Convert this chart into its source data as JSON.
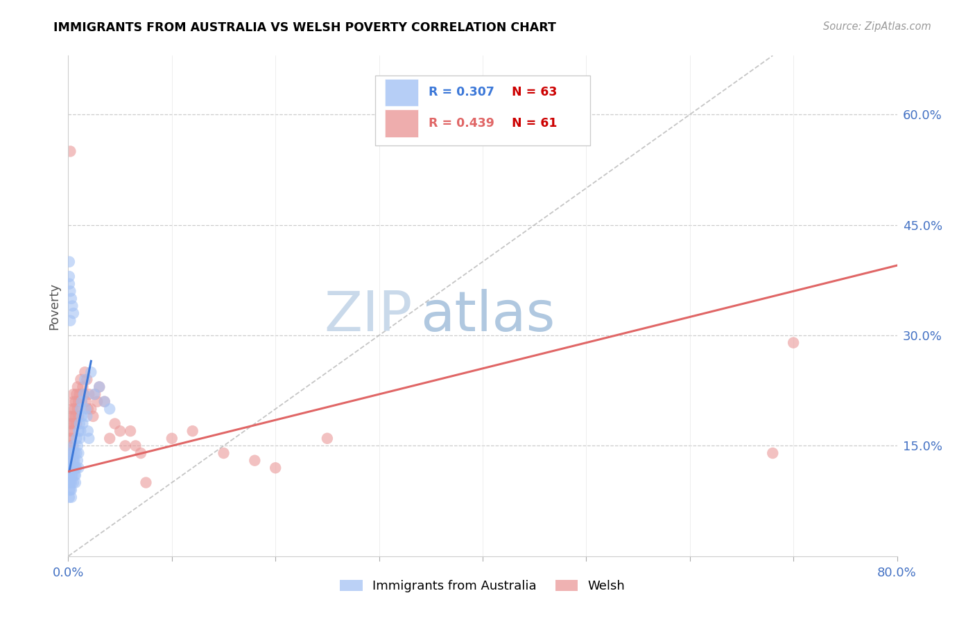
{
  "title": "IMMIGRANTS FROM AUSTRALIA VS WELSH POVERTY CORRELATION CHART",
  "source": "Source: ZipAtlas.com",
  "ylabel": "Poverty",
  "ytick_values": [
    0.15,
    0.3,
    0.45,
    0.6
  ],
  "xmin": 0.0,
  "xmax": 0.8,
  "ymin": 0.0,
  "ymax": 0.68,
  "blue_color": "#a4c2f4",
  "pink_color": "#ea9999",
  "blue_line_color": "#3c78d8",
  "pink_line_color": "#e06666",
  "diag_color": "#b7b7b7",
  "watermark_zip_color": "#c9d9e8",
  "watermark_atlas_color": "#b8cce4",
  "blue_scatter_x": [
    0.001,
    0.001,
    0.001,
    0.001,
    0.001,
    0.002,
    0.002,
    0.002,
    0.002,
    0.002,
    0.003,
    0.003,
    0.003,
    0.003,
    0.003,
    0.004,
    0.004,
    0.004,
    0.004,
    0.005,
    0.005,
    0.005,
    0.005,
    0.006,
    0.006,
    0.006,
    0.007,
    0.007,
    0.007,
    0.008,
    0.008,
    0.008,
    0.009,
    0.009,
    0.01,
    0.01,
    0.01,
    0.011,
    0.011,
    0.012,
    0.012,
    0.013,
    0.013,
    0.014,
    0.015,
    0.016,
    0.017,
    0.018,
    0.019,
    0.02,
    0.022,
    0.025,
    0.03,
    0.035,
    0.04,
    0.001,
    0.002,
    0.003,
    0.004,
    0.005,
    0.001,
    0.001,
    0.002
  ],
  "blue_scatter_y": [
    0.1,
    0.11,
    0.12,
    0.08,
    0.09,
    0.13,
    0.12,
    0.1,
    0.09,
    0.14,
    0.11,
    0.1,
    0.12,
    0.09,
    0.08,
    0.13,
    0.14,
    0.12,
    0.11,
    0.15,
    0.13,
    0.1,
    0.12,
    0.14,
    0.11,
    0.13,
    0.12,
    0.1,
    0.11,
    0.16,
    0.14,
    0.12,
    0.13,
    0.15,
    0.17,
    0.14,
    0.12,
    0.18,
    0.16,
    0.2,
    0.17,
    0.19,
    0.21,
    0.18,
    0.22,
    0.24,
    0.2,
    0.19,
    0.17,
    0.16,
    0.25,
    0.22,
    0.23,
    0.21,
    0.2,
    0.37,
    0.36,
    0.35,
    0.34,
    0.33,
    0.4,
    0.38,
    0.32
  ],
  "pink_scatter_x": [
    0.001,
    0.001,
    0.001,
    0.001,
    0.001,
    0.002,
    0.002,
    0.002,
    0.002,
    0.003,
    0.003,
    0.003,
    0.004,
    0.004,
    0.004,
    0.005,
    0.005,
    0.005,
    0.006,
    0.006,
    0.007,
    0.007,
    0.008,
    0.008,
    0.009,
    0.009,
    0.01,
    0.01,
    0.011,
    0.012,
    0.013,
    0.014,
    0.015,
    0.016,
    0.017,
    0.018,
    0.019,
    0.02,
    0.022,
    0.024,
    0.026,
    0.028,
    0.03,
    0.035,
    0.04,
    0.045,
    0.05,
    0.055,
    0.06,
    0.065,
    0.07,
    0.075,
    0.1,
    0.12,
    0.15,
    0.18,
    0.2,
    0.25,
    0.68,
    0.7,
    0.002
  ],
  "pink_scatter_y": [
    0.14,
    0.13,
    0.12,
    0.16,
    0.15,
    0.18,
    0.17,
    0.13,
    0.19,
    0.16,
    0.14,
    0.18,
    0.2,
    0.17,
    0.15,
    0.21,
    0.19,
    0.22,
    0.2,
    0.18,
    0.19,
    0.21,
    0.18,
    0.22,
    0.2,
    0.23,
    0.21,
    0.19,
    0.22,
    0.24,
    0.21,
    0.23,
    0.22,
    0.25,
    0.21,
    0.24,
    0.2,
    0.22,
    0.2,
    0.19,
    0.22,
    0.21,
    0.23,
    0.21,
    0.16,
    0.18,
    0.17,
    0.15,
    0.17,
    0.15,
    0.14,
    0.1,
    0.16,
    0.17,
    0.14,
    0.13,
    0.12,
    0.16,
    0.14,
    0.29,
    0.55
  ],
  "blue_line_x": [
    0.001,
    0.022
  ],
  "blue_line_y": [
    0.115,
    0.265
  ],
  "pink_line_x": [
    0.0,
    0.8
  ],
  "pink_line_y": [
    0.115,
    0.395
  ],
  "diag_line_x": [
    0.0,
    0.68
  ],
  "diag_line_y": [
    0.0,
    0.68
  ]
}
